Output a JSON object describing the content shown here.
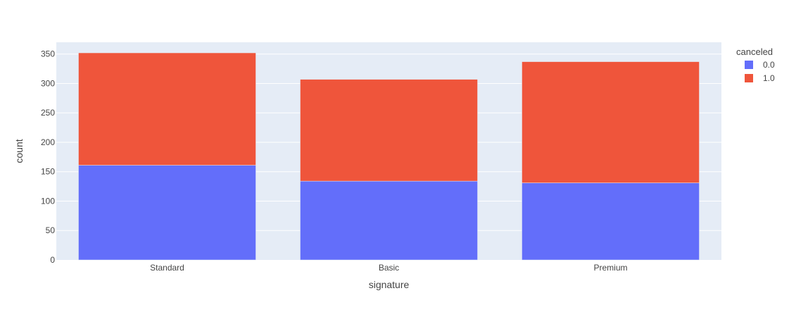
{
  "chart_data": {
    "type": "bar",
    "barmode": "stack",
    "categories": [
      "Standard",
      "Basic",
      "Premium"
    ],
    "series": [
      {
        "name": "0.0",
        "values": [
          161,
          134,
          131
        ],
        "color": "#636efa"
      },
      {
        "name": "1.0",
        "values": [
          191,
          173,
          206
        ],
        "color": "#ef553b"
      }
    ],
    "xlabel": "signature",
    "ylabel": "count",
    "ylim": [
      0,
      370
    ],
    "yticks": [
      0,
      50,
      100,
      150,
      200,
      250,
      300,
      350
    ],
    "legend": {
      "title": "canceled",
      "placement": "top-right"
    },
    "grid": true,
    "plot_bg": "#e5ecf6",
    "grid_color": "#ffffff"
  }
}
